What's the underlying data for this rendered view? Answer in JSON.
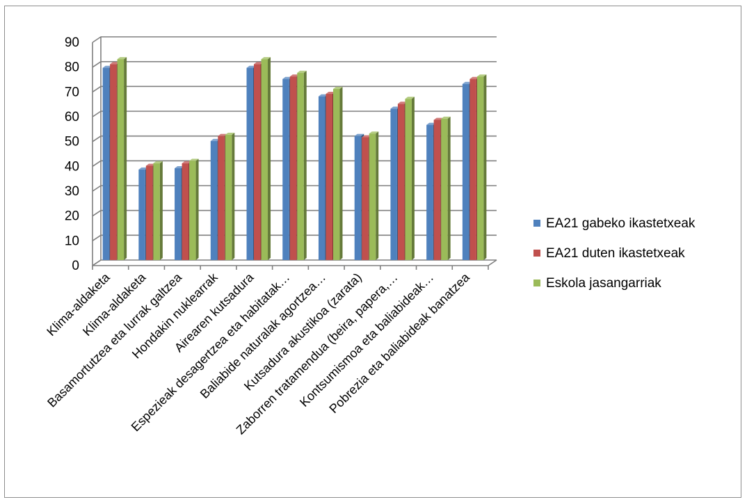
{
  "chart_data": {
    "type": "bar",
    "title": "",
    "xlabel": "",
    "ylabel": "",
    "ylim": [
      0,
      90
    ],
    "yticks": [
      0,
      10,
      20,
      30,
      40,
      50,
      60,
      70,
      80,
      90
    ],
    "grid": true,
    "legend_position": "right",
    "categories": [
      "Klima-aldaketa",
      "Klima-aldaketa",
      "Basamortutzea eta lurrak galtzea",
      "Hondakin nuklearrak",
      "Airearen kutsadura",
      "Espezieak desagertzea eta habitatak…",
      "Baliabide naturalak agortzea…",
      "Kutsadura akustikoa (zarata)",
      "Zaborren tratamendua (beira, papera,…",
      "Kontsumismoa eta baliabideak…",
      "Pobrezia eta baliabideak banatzea"
    ],
    "series": [
      {
        "name": "EA21 gabeko ikastetxeak",
        "color": "#4f81bd",
        "values": [
          77.5,
          36.5,
          37,
          48,
          77.5,
          73,
          66,
          50,
          61,
          54.5,
          71
        ]
      },
      {
        "name": "EA21 duten ikastetxeak",
        "color": "#c0504d",
        "values": [
          79,
          38,
          39,
          50,
          79,
          74,
          67,
          49.5,
          63,
          56.5,
          73
        ]
      },
      {
        "name": "Eskola jasangarriak",
        "color": "#9bbb59",
        "values": [
          81,
          39,
          40,
          50.5,
          81,
          75.5,
          69,
          51,
          65,
          57,
          74
        ]
      }
    ]
  }
}
